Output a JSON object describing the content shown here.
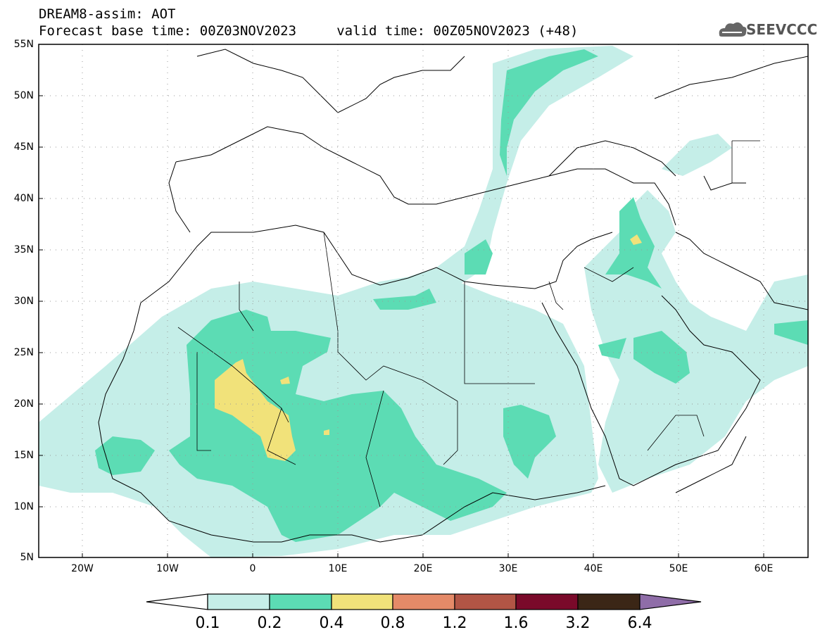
{
  "title": {
    "line1": "DREAM8-assim: AOT",
    "line2": "Forecast base time: 00Z03NOV2023     valid time: 00Z05NOV2023 (+48)"
  },
  "logo": {
    "text": "SEEVCCC",
    "icon": "cloud-icon"
  },
  "axes": {
    "lat_labels": [
      "55N",
      "50N",
      "45N",
      "40N",
      "35N",
      "30N",
      "25N",
      "20N",
      "15N",
      "10N",
      "5N"
    ],
    "lon_labels": [
      "20W",
      "10W",
      "0",
      "10E",
      "20E",
      "30E",
      "40E",
      "50E",
      "60E"
    ]
  },
  "colorbar": {
    "levels": [
      "0.1",
      "0.2",
      "0.4",
      "0.8",
      "1.2",
      "1.6",
      "3.2",
      "6.4"
    ],
    "colors": [
      "#ffffff",
      "#c5eee8",
      "#5cdcb4",
      "#f1e27a",
      "#e58a68",
      "#b25545",
      "#7a0a2a",
      "#3b2616",
      "#8f6da8"
    ]
  }
}
